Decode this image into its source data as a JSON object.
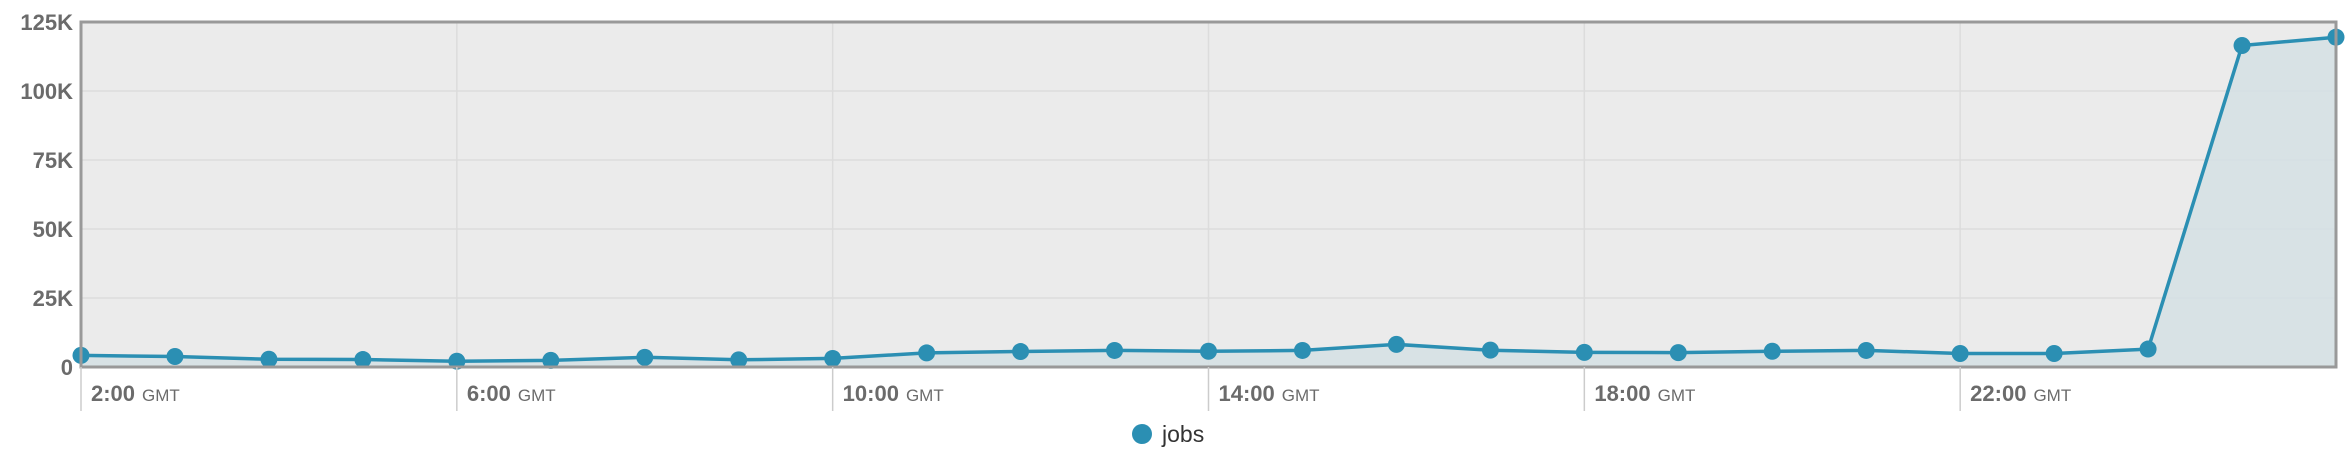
{
  "colors": {
    "series": "#2b8fb3",
    "area_fill": "#d5e0e4",
    "plot_background": "#ebebeb",
    "grid": "#dcdcdc",
    "frame": "#999999",
    "tick_text": "#6b6b6b"
  },
  "chart_data": {
    "type": "area",
    "title": "",
    "xlabel": "",
    "ylabel": "",
    "ylim": [
      0,
      125000
    ],
    "grid": true,
    "legend_position": "bottom-center",
    "y_ticks": [
      {
        "value": 0,
        "label": "0"
      },
      {
        "value": 25000,
        "label": "25K"
      },
      {
        "value": 50000,
        "label": "50K"
      },
      {
        "value": 75000,
        "label": "75K"
      },
      {
        "value": 100000,
        "label": "100K"
      },
      {
        "value": 125000,
        "label": "125K"
      }
    ],
    "x_ticks": [
      {
        "hour": 2,
        "time": "2:00",
        "zone": "GMT"
      },
      {
        "hour": 6,
        "time": "6:00",
        "zone": "GMT"
      },
      {
        "hour": 10,
        "time": "10:00",
        "zone": "GMT"
      },
      {
        "hour": 14,
        "time": "14:00",
        "zone": "GMT"
      },
      {
        "hour": 18,
        "time": "18:00",
        "zone": "GMT"
      },
      {
        "hour": 22,
        "time": "22:00",
        "zone": "GMT"
      }
    ],
    "series": [
      {
        "name": "jobs",
        "points": [
          {
            "hour": 2.0,
            "value": 4200
          },
          {
            "hour": 3.0,
            "value": 3800
          },
          {
            "hour": 4.0,
            "value": 2800
          },
          {
            "hour": 5.0,
            "value": 2700
          },
          {
            "hour": 6.0,
            "value": 2100
          },
          {
            "hour": 7.0,
            "value": 2400
          },
          {
            "hour": 8.0,
            "value": 3500
          },
          {
            "hour": 9.0,
            "value": 2600
          },
          {
            "hour": 10.0,
            "value": 3100
          },
          {
            "hour": 11.0,
            "value": 5100
          },
          {
            "hour": 12.0,
            "value": 5600
          },
          {
            "hour": 13.0,
            "value": 6000
          },
          {
            "hour": 14.0,
            "value": 5700
          },
          {
            "hour": 15.0,
            "value": 6000
          },
          {
            "hour": 16.0,
            "value": 8200
          },
          {
            "hour": 17.0,
            "value": 6100
          },
          {
            "hour": 18.0,
            "value": 5300
          },
          {
            "hour": 19.0,
            "value": 5200
          },
          {
            "hour": 20.0,
            "value": 5700
          },
          {
            "hour": 21.0,
            "value": 6000
          },
          {
            "hour": 22.0,
            "value": 4900
          },
          {
            "hour": 23.0,
            "value": 4900
          },
          {
            "hour": 24.0,
            "value": 6500
          },
          {
            "hour": 25.0,
            "value": 116500
          },
          {
            "hour": 26.0,
            "value": 119500
          }
        ]
      }
    ]
  }
}
